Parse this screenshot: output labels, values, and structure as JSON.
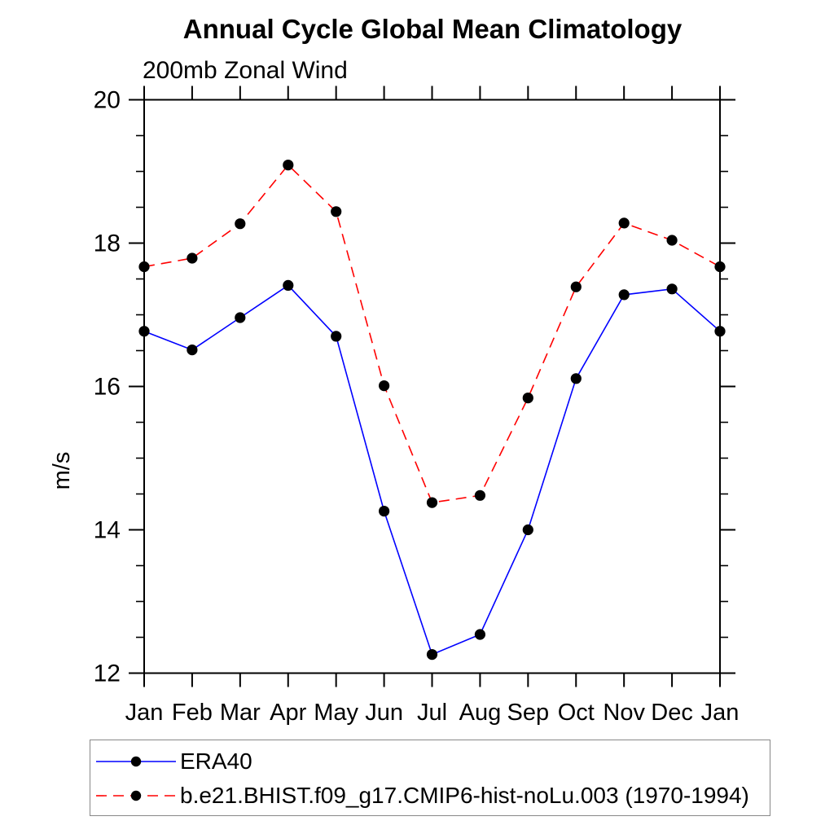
{
  "header": {
    "title": "Annual Cycle Global Mean Climatology",
    "subtitle": "200mb Zonal Wind"
  },
  "chart_data": {
    "type": "line",
    "title": "Annual Cycle Global Mean Climatology",
    "subtitle": "200mb Zonal Wind",
    "xlabel": "",
    "ylabel": "m/s",
    "categories": [
      "Jan",
      "Feb",
      "Mar",
      "Apr",
      "May",
      "Jun",
      "Jul",
      "Aug",
      "Sep",
      "Oct",
      "Nov",
      "Dec",
      "Jan"
    ],
    "ylim": [
      12,
      20
    ],
    "ytick_major": [
      12,
      14,
      16,
      18,
      20
    ],
    "ytick_minor_step": 0.5,
    "grid": false,
    "legend_position": "bottom-left-box",
    "axis_color": "#000000",
    "legend_border_color": "#888888",
    "series": [
      {
        "name": "ERA40",
        "color": "#0000ff",
        "style": "solid",
        "marker": "filled-circle",
        "marker_color": "#000000",
        "values": [
          16.77,
          16.51,
          16.96,
          17.41,
          16.7,
          14.26,
          12.26,
          12.54,
          14.0,
          16.11,
          17.28,
          17.36,
          16.77
        ]
      },
      {
        "name": "b.e21.BHIST.f09_g17.CMIP6-hist-noLu.003 (1970-1994)",
        "color": "#ff0000",
        "style": "dashed",
        "marker": "filled-circle",
        "marker_color": "#000000",
        "values": [
          17.67,
          17.79,
          18.27,
          19.09,
          18.44,
          16.01,
          14.38,
          14.48,
          15.84,
          17.39,
          18.28,
          18.04,
          17.67
        ]
      }
    ]
  }
}
